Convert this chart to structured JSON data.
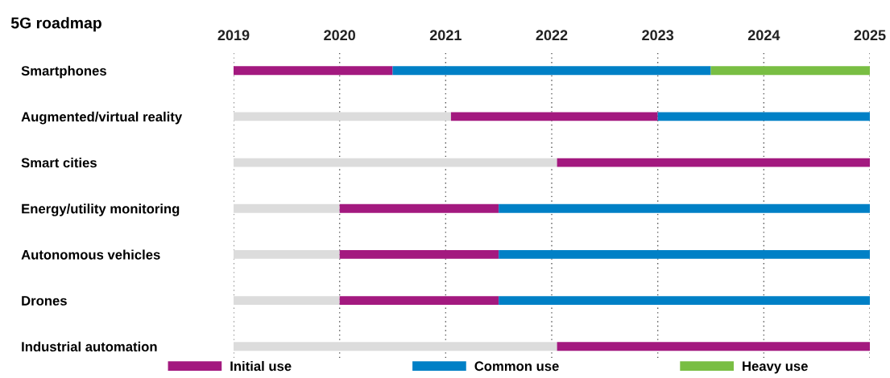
{
  "chart_data": {
    "type": "bar",
    "orientation": "horizontal",
    "title": "5G roadmap",
    "categories": [
      "Smartphones",
      "Augmented/virtual reality",
      "Smart cities",
      "Energy/utility monitoring",
      "Autonomous vehicles",
      "Drones",
      "Industrial automation"
    ],
    "series": [
      {
        "color": "#dcdcdc",
        "base": [
          null,
          2019,
          2019,
          2019,
          2019,
          2019,
          2019
        ],
        "values": [
          null,
          2.05,
          3.05,
          1.0,
          1.0,
          1.0,
          3.05
        ]
      },
      {
        "name": "Initial use",
        "color": "#a3197f",
        "base": [
          2019,
          2021.05,
          2022.05,
          2020,
          2020,
          2020,
          2022.05
        ],
        "values": [
          1.5,
          1.95,
          2.95,
          1.5,
          1.5,
          1.5,
          2.95
        ]
      },
      {
        "name": "Common use",
        "color": "#0080c6",
        "base": [
          2020.5,
          2023,
          null,
          2021.5,
          2021.5,
          2021.5,
          null
        ],
        "values": [
          3.0,
          2.0,
          null,
          3.5,
          3.5,
          3.5,
          null
        ]
      },
      {
        "name": "Heavy use",
        "color": "#79be43",
        "base": [
          2023.5,
          null,
          null,
          null,
          null,
          null,
          null
        ],
        "values": [
          1.5,
          null,
          null,
          null,
          null,
          null,
          null
        ]
      }
    ],
    "xlim": [
      2019,
      2025
    ],
    "xticks": [
      2019,
      2020,
      2021,
      2022,
      2023,
      2024,
      2025
    ],
    "grid": "x",
    "legend": "bottom"
  }
}
